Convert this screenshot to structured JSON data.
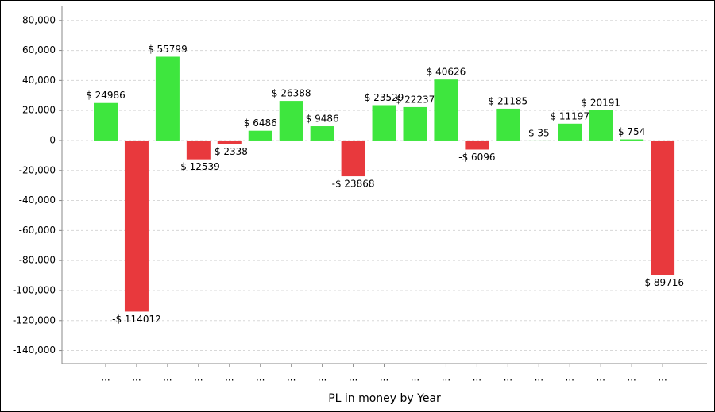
{
  "chart_data": {
    "type": "bar",
    "x_label": "PL in money by Year",
    "categories": [
      "...",
      "...",
      "...",
      "...",
      "...",
      "...",
      "...",
      "...",
      "...",
      "...",
      "...",
      "...",
      "...",
      "...",
      "...",
      "...",
      "...",
      "...",
      "..."
    ],
    "values": [
      24986,
      -114012,
      55799,
      -12539,
      -2338,
      6486,
      26388,
      9486,
      -23868,
      23529,
      22237,
      40626,
      -6096,
      21185,
      35,
      11197,
      20191,
      754,
      -89716
    ],
    "value_labels": [
      "$ 24986",
      "-$ 114012",
      "$ 55799",
      "-$ 12539",
      "-$ 2338",
      "$ 6486",
      "$ 26388",
      "$ 9486",
      "-$ 23868",
      "$ 23529",
      "$ 22237",
      "$ 40626",
      "-$ 6096",
      "$ 21185",
      "$ 35",
      "$ 11197",
      "$ 20191",
      "$ 754",
      "-$ 89716"
    ],
    "positive_color": "#3ee63e",
    "negative_color": "#e8393d",
    "ylim": [
      -148700,
      89400
    ],
    "yticks": [
      {
        "value": -140000,
        "label": "-140,000"
      },
      {
        "value": -120000,
        "label": "-120,000"
      },
      {
        "value": -100000,
        "label": "-100,000"
      },
      {
        "value": -80000,
        "label": "-80,000"
      },
      {
        "value": -60000,
        "label": "-60,000"
      },
      {
        "value": -40000,
        "label": "-40,000"
      },
      {
        "value": -20000,
        "label": "-20,000"
      },
      0,
      {
        "value": 20000,
        "label": "20,000"
      },
      {
        "value": 40000,
        "label": "40,000"
      },
      {
        "value": 60000,
        "label": "60,000"
      },
      {
        "value": 80000,
        "label": "80,000"
      }
    ],
    "grid": true
  }
}
